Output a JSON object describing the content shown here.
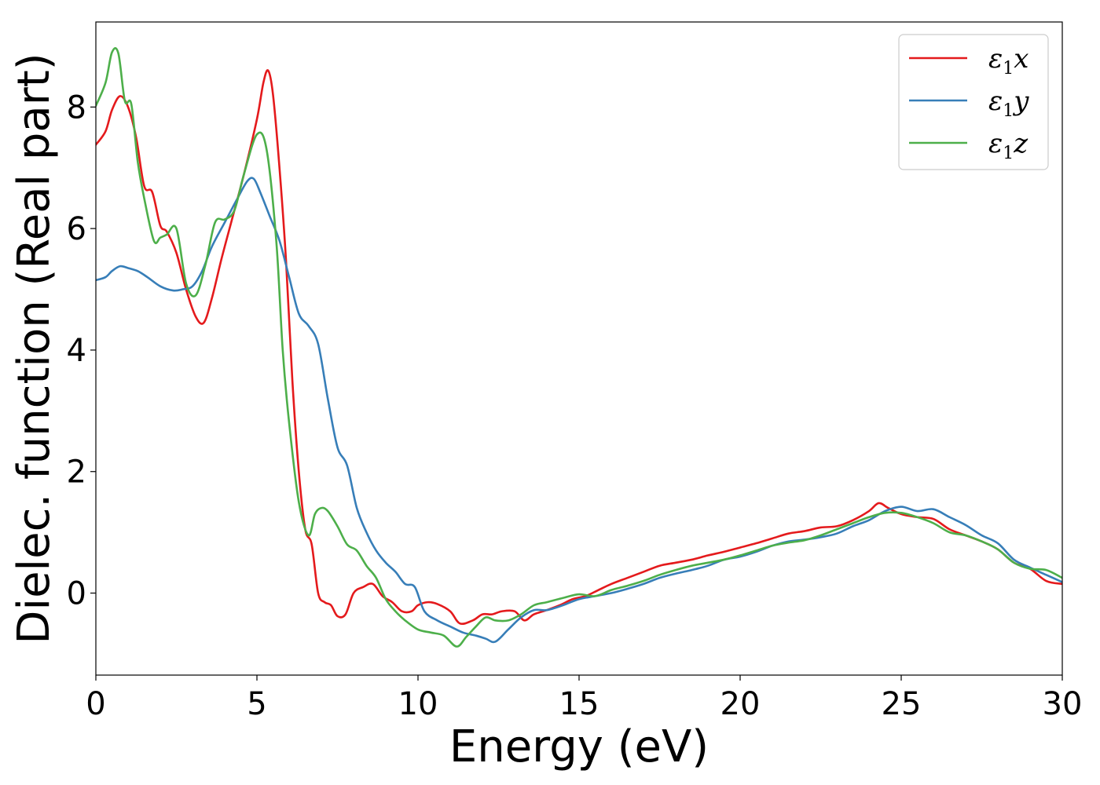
{
  "chart_data": {
    "type": "line",
    "xlabel": "Energy (eV)",
    "ylabel": "Dielec. function (Real part)",
    "xlim": [
      0,
      30
    ],
    "ylim": [
      -1.35,
      9.4
    ],
    "xticks": [
      0,
      5,
      10,
      15,
      20,
      25,
      30
    ],
    "xtick_labels": [
      "0",
      "5",
      "10",
      "15",
      "20",
      "25",
      "30"
    ],
    "yticks": [
      0,
      2,
      4,
      6,
      8
    ],
    "ytick_labels": [
      "0",
      "2",
      "4",
      "6",
      "8"
    ],
    "grid": false,
    "legend_position": "top-right",
    "series": [
      {
        "name": "ε₁x",
        "legend_base": "ε",
        "legend_sub": "1",
        "legend_suffix": "x",
        "color": "#e41a1c",
        "x": [
          0,
          0.3,
          0.5,
          0.75,
          1.0,
          1.25,
          1.5,
          1.75,
          2.0,
          2.2,
          2.5,
          2.8,
          3.1,
          3.35,
          3.6,
          3.9,
          4.2,
          4.6,
          5.0,
          5.2,
          5.35,
          5.5,
          5.7,
          5.9,
          6.1,
          6.3,
          6.5,
          6.7,
          6.9,
          7.1,
          7.3,
          7.5,
          7.75,
          8.0,
          8.3,
          8.6,
          8.9,
          9.2,
          9.5,
          9.8,
          10.0,
          10.3,
          10.6,
          11.0,
          11.3,
          11.7,
          12.0,
          12.3,
          12.6,
          13.0,
          13.3,
          13.6,
          14.0,
          14.4,
          14.8,
          15.2,
          15.6,
          16.0,
          16.5,
          17.0,
          17.5,
          18.0,
          18.5,
          19.0,
          19.5,
          20.0,
          20.5,
          21.0,
          21.5,
          22.0,
          22.5,
          23.0,
          23.5,
          24.0,
          24.3,
          24.6,
          25.0,
          25.5,
          26.0,
          26.5,
          27.0,
          27.5,
          28.0,
          28.5,
          29.0,
          29.5,
          30.0
        ],
        "values": [
          7.38,
          7.6,
          7.95,
          8.18,
          8.0,
          7.5,
          6.7,
          6.6,
          6.05,
          5.95,
          5.6,
          5.0,
          4.55,
          4.45,
          4.85,
          5.5,
          6.1,
          6.9,
          7.8,
          8.4,
          8.6,
          8.2,
          7.0,
          5.5,
          3.5,
          2.0,
          1.05,
          0.8,
          0.0,
          -0.15,
          -0.2,
          -0.38,
          -0.35,
          0.0,
          0.1,
          0.15,
          -0.05,
          -0.15,
          -0.3,
          -0.3,
          -0.2,
          -0.15,
          -0.18,
          -0.3,
          -0.5,
          -0.45,
          -0.35,
          -0.35,
          -0.3,
          -0.3,
          -0.45,
          -0.35,
          -0.28,
          -0.2,
          -0.1,
          -0.05,
          0.05,
          0.15,
          0.25,
          0.35,
          0.45,
          0.5,
          0.55,
          0.62,
          0.68,
          0.75,
          0.82,
          0.9,
          0.98,
          1.02,
          1.08,
          1.1,
          1.2,
          1.35,
          1.48,
          1.4,
          1.3,
          1.25,
          1.22,
          1.05,
          0.95,
          0.85,
          0.72,
          0.5,
          0.4,
          0.2,
          0.15
        ]
      },
      {
        "name": "ε₁y",
        "legend_base": "ε",
        "legend_sub": "1",
        "legend_suffix": "y",
        "color": "#377eb8",
        "x": [
          0,
          0.3,
          0.5,
          0.75,
          1.0,
          1.3,
          1.6,
          2.0,
          2.4,
          2.7,
          3.0,
          3.3,
          3.6,
          4.0,
          4.4,
          4.7,
          4.9,
          5.1,
          5.4,
          5.7,
          6.0,
          6.3,
          6.6,
          6.9,
          7.2,
          7.5,
          7.8,
          8.1,
          8.4,
          8.7,
          9.0,
          9.3,
          9.6,
          9.9,
          10.2,
          10.6,
          11.0,
          11.4,
          11.8,
          12.1,
          12.4,
          12.8,
          13.2,
          13.6,
          14.0,
          14.5,
          15.0,
          15.5,
          16.0,
          16.5,
          17.0,
          17.5,
          18.0,
          18.5,
          19.0,
          19.5,
          20.0,
          20.5,
          21.0,
          21.5,
          22.0,
          22.5,
          23.0,
          23.5,
          24.0,
          24.5,
          25.0,
          25.5,
          26.0,
          26.5,
          27.0,
          27.5,
          28.0,
          28.5,
          29.0,
          29.5,
          30.0
        ],
        "values": [
          5.15,
          5.2,
          5.3,
          5.38,
          5.35,
          5.3,
          5.2,
          5.05,
          4.98,
          5.0,
          5.05,
          5.3,
          5.7,
          6.1,
          6.5,
          6.78,
          6.82,
          6.6,
          6.2,
          5.8,
          5.2,
          4.6,
          4.4,
          4.1,
          3.2,
          2.4,
          2.1,
          1.4,
          1.0,
          0.7,
          0.5,
          0.35,
          0.15,
          0.1,
          -0.3,
          -0.45,
          -0.55,
          -0.65,
          -0.7,
          -0.75,
          -0.8,
          -0.6,
          -0.4,
          -0.28,
          -0.28,
          -0.2,
          -0.1,
          -0.05,
          0.0,
          0.07,
          0.15,
          0.25,
          0.32,
          0.38,
          0.45,
          0.55,
          0.6,
          0.68,
          0.78,
          0.85,
          0.88,
          0.92,
          0.98,
          1.1,
          1.2,
          1.35,
          1.42,
          1.35,
          1.38,
          1.25,
          1.12,
          0.95,
          0.82,
          0.55,
          0.42,
          0.3,
          0.18
        ]
      },
      {
        "name": "ε₁z",
        "legend_base": "ε",
        "legend_sub": "1",
        "legend_suffix": "z",
        "color": "#4daf4a",
        "x": [
          0,
          0.3,
          0.5,
          0.7,
          0.9,
          1.1,
          1.3,
          1.5,
          1.8,
          2.0,
          2.2,
          2.5,
          2.8,
          3.1,
          3.4,
          3.7,
          4.0,
          4.3,
          4.6,
          5.0,
          5.3,
          5.6,
          5.8,
          6.0,
          6.3,
          6.6,
          6.8,
          7.0,
          7.2,
          7.5,
          7.8,
          8.1,
          8.4,
          8.7,
          9.0,
          9.3,
          9.6,
          10.0,
          10.4,
          10.8,
          11.2,
          11.5,
          11.8,
          12.1,
          12.4,
          12.8,
          13.2,
          13.6,
          14.0,
          14.5,
          15.0,
          15.5,
          16.0,
          16.5,
          17.0,
          17.5,
          18.0,
          18.5,
          19.0,
          19.5,
          20.0,
          20.5,
          21.0,
          21.5,
          22.0,
          22.5,
          23.0,
          23.5,
          24.0,
          24.5,
          25.0,
          25.5,
          26.0,
          26.5,
          27.0,
          27.5,
          28.0,
          28.5,
          29.0,
          29.5,
          30.0
        ],
        "values": [
          8.02,
          8.4,
          8.9,
          8.88,
          8.1,
          8.05,
          7.1,
          6.5,
          5.8,
          5.85,
          5.9,
          6.0,
          5.1,
          4.9,
          5.4,
          6.1,
          6.15,
          6.3,
          6.9,
          7.55,
          7.3,
          5.8,
          4.0,
          2.8,
          1.5,
          0.95,
          1.3,
          1.4,
          1.35,
          1.1,
          0.8,
          0.7,
          0.45,
          0.25,
          -0.1,
          -0.3,
          -0.45,
          -0.6,
          -0.65,
          -0.7,
          -0.88,
          -0.72,
          -0.55,
          -0.4,
          -0.45,
          -0.45,
          -0.35,
          -0.2,
          -0.15,
          -0.08,
          -0.02,
          -0.05,
          0.05,
          0.12,
          0.2,
          0.3,
          0.38,
          0.45,
          0.5,
          0.55,
          0.62,
          0.7,
          0.78,
          0.83,
          0.87,
          0.95,
          1.05,
          1.15,
          1.25,
          1.32,
          1.32,
          1.25,
          1.15,
          1.0,
          0.95,
          0.85,
          0.72,
          0.5,
          0.4,
          0.38,
          0.25
        ]
      }
    ]
  }
}
